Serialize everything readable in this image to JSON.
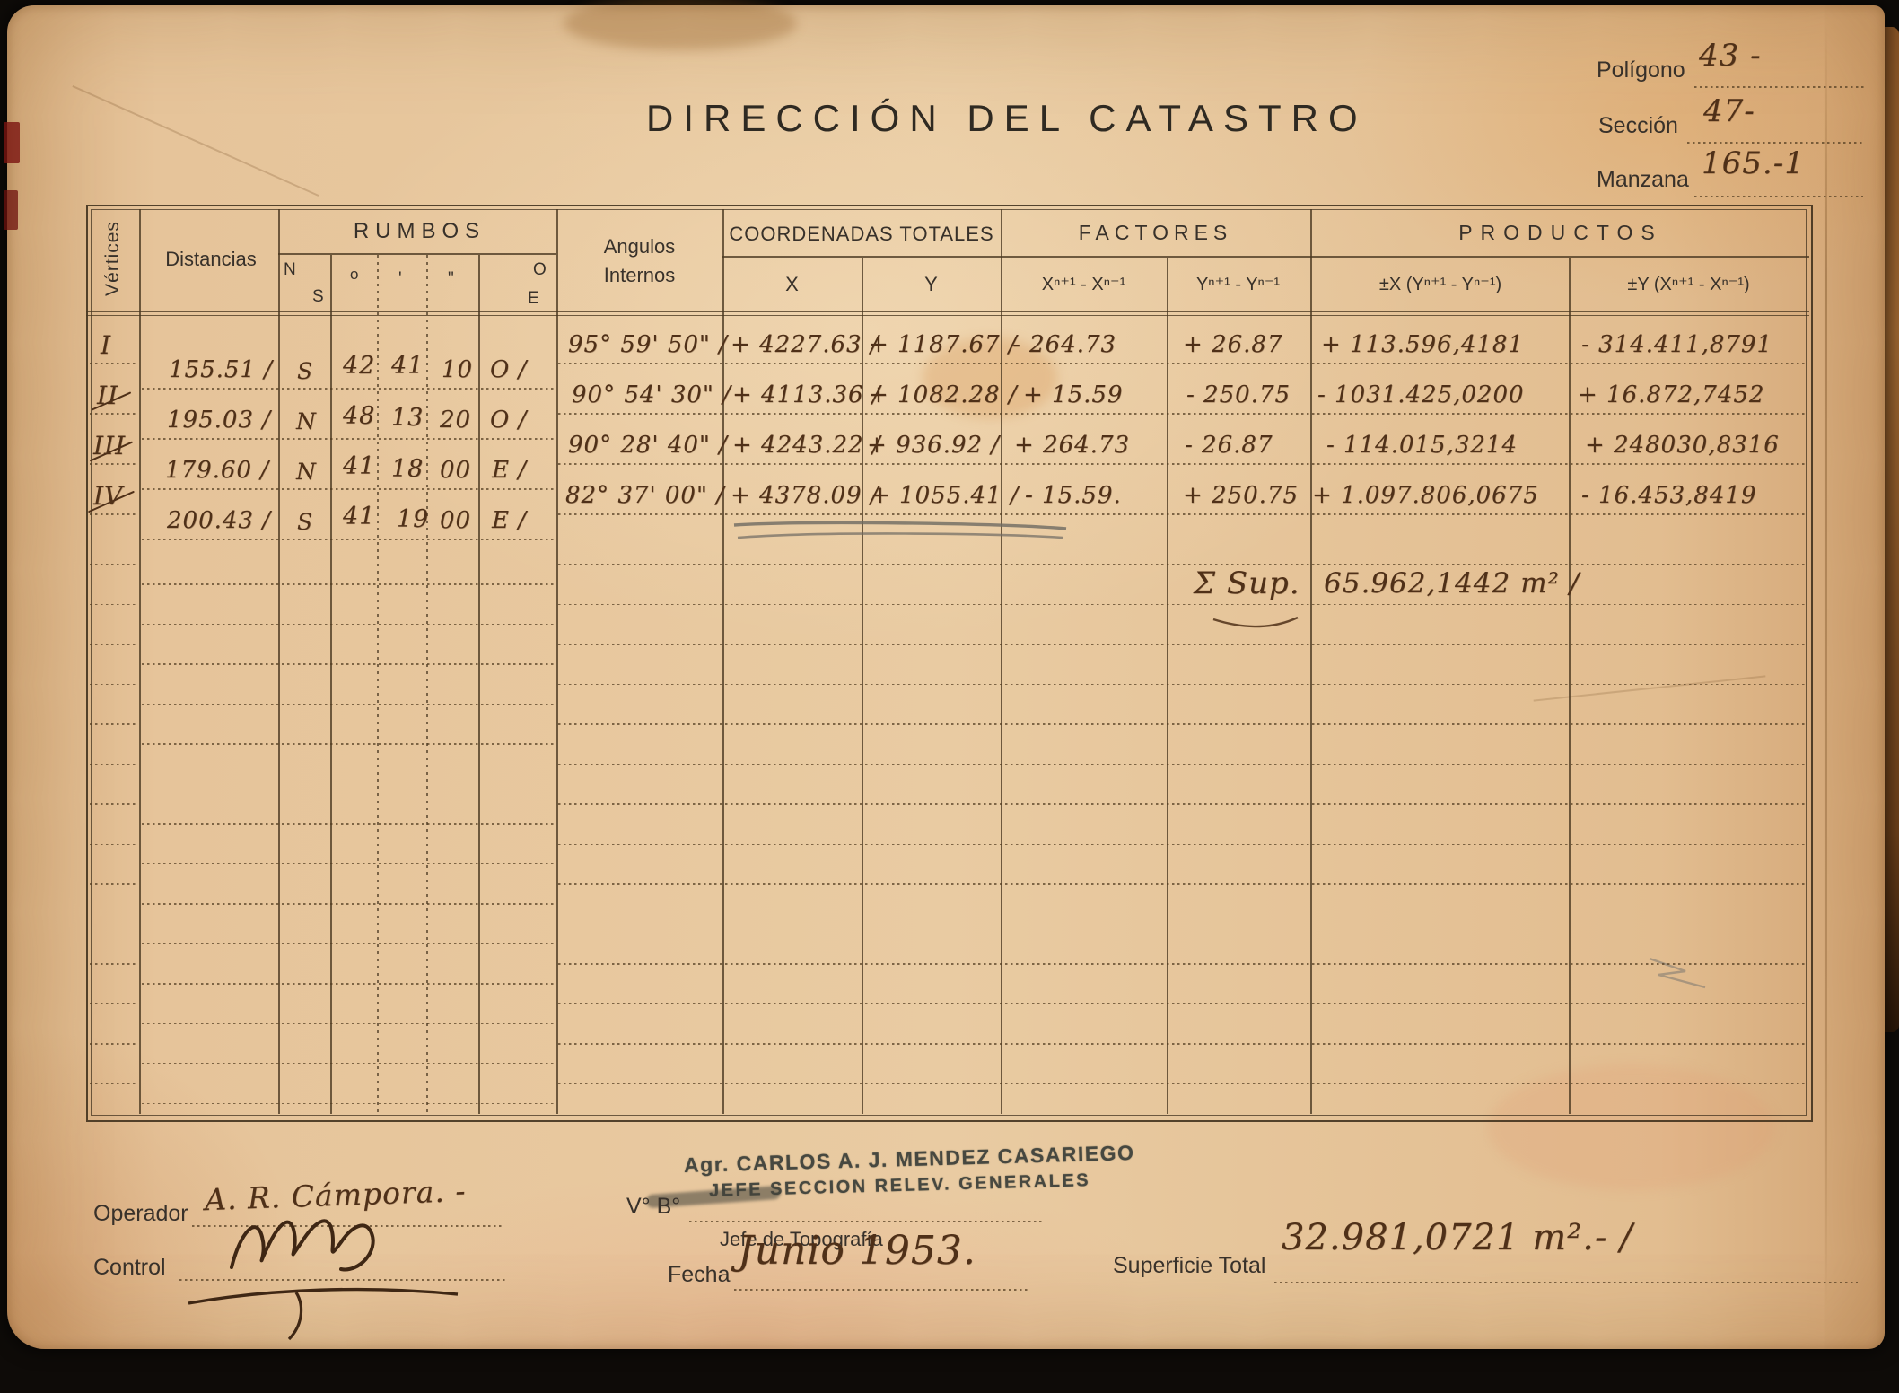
{
  "page": {
    "title": "DIRECCIÓN DEL CATASTRO",
    "meta": {
      "poligono_label": "Polígono",
      "poligono_value": "43 -",
      "seccion_label": "Sección",
      "seccion_value": "47-",
      "manzana_label": "Manzana",
      "manzana_value": "165.-1"
    }
  },
  "table": {
    "headers": {
      "vertices": "Vértices",
      "distancias": "Distancias",
      "rumbos": "RUMBOS",
      "rumbos_n": "N",
      "rumbos_s": "S",
      "rumbos_deg": "o",
      "rumbos_min": "'",
      "rumbos_sec": "\"",
      "rumbos_o": "O",
      "rumbos_e": "E",
      "angulos": "Angulos",
      "internos": "Internos",
      "coordenadas": "COORDENADAS TOTALES",
      "coord_x": "X",
      "coord_y": "Y",
      "factores": "FACTORES",
      "factor_x": "Xⁿ⁺¹ - Xⁿ⁻¹",
      "factor_y": "Yⁿ⁺¹ - Yⁿ⁻¹",
      "productos": "PRODUCTOS",
      "prod_x": "±X (Yⁿ⁺¹ - Yⁿ⁻¹)",
      "prod_y": "±Y (Xⁿ⁺¹ - Xⁿ⁻¹)"
    },
    "rows": [
      {
        "vertex": "I",
        "distancia": "155.51 /",
        "ns": "S",
        "deg": "42",
        "min": "41",
        "sec": "10",
        "oe": "O /",
        "angulo": "95° 59' 50\" /",
        "x": "+ 4227.63 /",
        "y": "+ 1187.67 /",
        "fx": "- 264.73",
        "fy": "+ 26.87",
        "px": "+ 113.596,4181",
        "py": "- 314.411,8791"
      },
      {
        "vertex": "II",
        "distancia": "195.03 /",
        "ns": "N",
        "deg": "48",
        "min": "13",
        "sec": "20",
        "oe": "O /",
        "angulo": "90° 54' 30\" /",
        "x": "+ 4113.36 /",
        "y": "+ 1082.28 /",
        "fx": "+ 15.59",
        "fy": "- 250.75",
        "px": "- 1031.425,0200",
        "py": "+ 16.872,7452"
      },
      {
        "vertex": "III",
        "distancia": "179.60 /",
        "ns": "N",
        "deg": "41",
        "min": "18",
        "sec": "00",
        "oe": "E /",
        "angulo": "90° 28' 40\" /",
        "x": "+ 4243.22 /",
        "y": "+ 936.92 /",
        "fx": "+ 264.73",
        "fy": "- 26.87",
        "px": "- 114.015,3214",
        "py": "+ 248030,8316"
      },
      {
        "vertex": "IV",
        "distancia": "200.43 /",
        "ns": "S",
        "deg": "41",
        "min": "19",
        "sec": "00",
        "oe": "E /",
        "angulo": "82° 37' 00\" /",
        "x": "+ 4378.09 /",
        "y": "+ 1055.41 /",
        "fx": "- 15.59.",
        "fy": "+ 250.75",
        "px": "+ 1.097.806,0675",
        "py": "- 16.453,8419"
      }
    ],
    "sum_label": "Σ Sup.",
    "sum_value": "65.962,1442 m² /"
  },
  "footer": {
    "stamp_line1": "Agr. CARLOS A. J. MENDEZ CASARIEGO",
    "stamp_line2": "JEFE SECCION RELEV. GENERALES",
    "vobo_label": "V° B°",
    "jefe_label": "Jefe de Topografía",
    "operador_label": "Operador",
    "operador_value": "A. R. Cámpora. -",
    "control_label": "Control",
    "fecha_label": "Fecha",
    "fecha_value": "Junio 1953.",
    "superficie_label": "Superficie Total",
    "superficie_value": "32.981,0721 m².- /"
  }
}
